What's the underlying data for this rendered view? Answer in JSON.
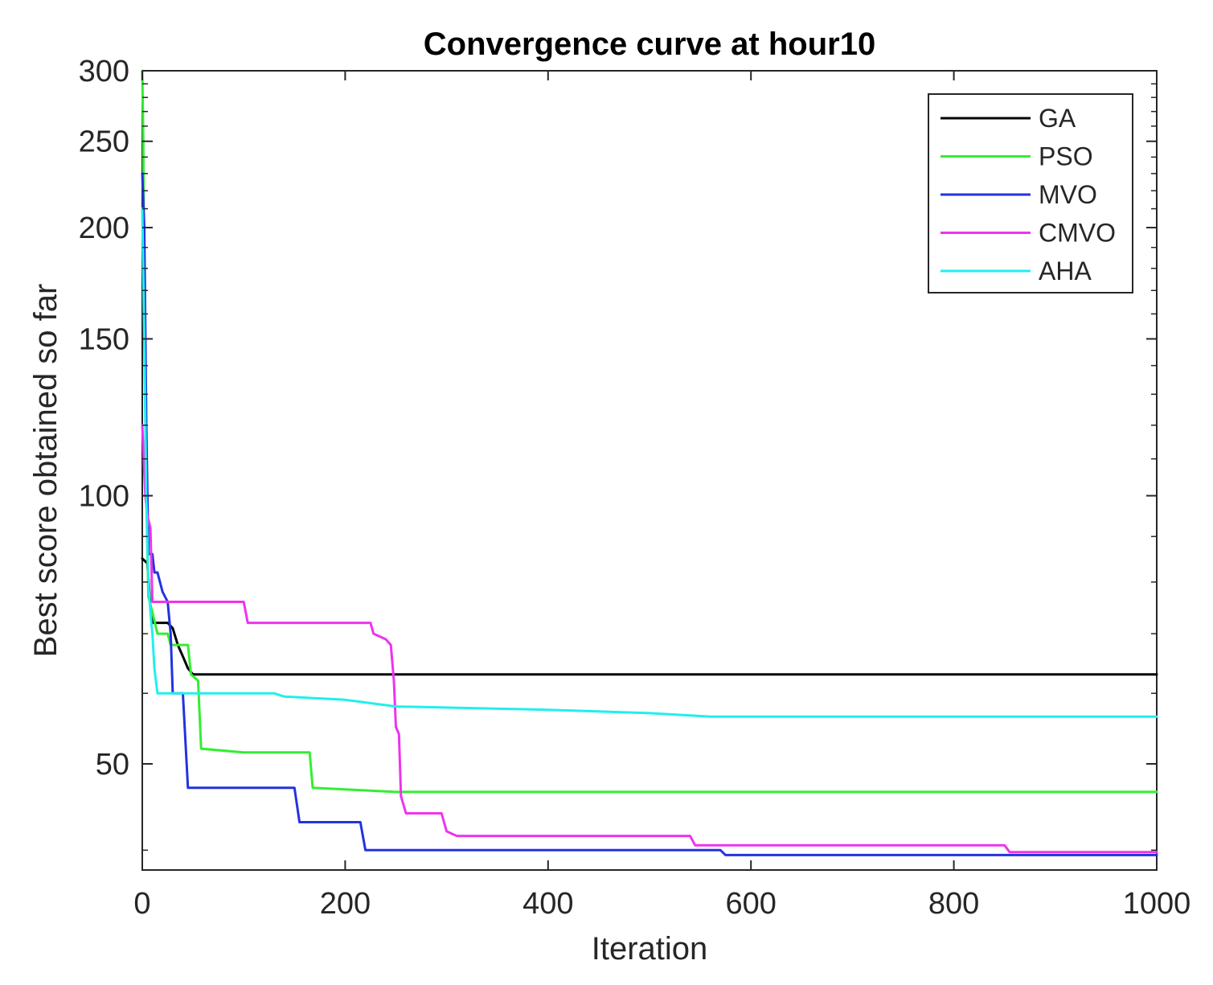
{
  "chart_data": {
    "type": "line",
    "title": "Convergence curve at hour10",
    "xlabel": "Iteration",
    "ylabel": "Best score obtained so far",
    "xlim": [
      0,
      1000
    ],
    "ylim": [
      38,
      300
    ],
    "y_scale": "log",
    "x_ticks": [
      0,
      200,
      400,
      600,
      800,
      1000
    ],
    "x_tick_labels": [
      "0",
      "200",
      "400",
      "600",
      "800",
      "1000"
    ],
    "y_ticks": [
      50,
      100,
      150,
      200,
      250,
      300
    ],
    "y_tick_labels": [
      "50",
      "100",
      "150",
      "200",
      "250",
      "300"
    ],
    "grid": false,
    "legend_position": "top-right",
    "series": [
      {
        "name": "GA",
        "color": "#000000",
        "points": [
          [
            0,
            85
          ],
          [
            5,
            84
          ],
          [
            8,
            75
          ],
          [
            10,
            72
          ],
          [
            15,
            72
          ],
          [
            25,
            72
          ],
          [
            30,
            71
          ],
          [
            35,
            68
          ],
          [
            40,
            66
          ],
          [
            45,
            64
          ],
          [
            50,
            63
          ],
          [
            100,
            63
          ],
          [
            200,
            63
          ],
          [
            400,
            63
          ],
          [
            600,
            63
          ],
          [
            800,
            63
          ],
          [
            1000,
            63
          ]
        ]
      },
      {
        "name": "PSO",
        "color": "#33ee33",
        "points": [
          [
            0,
            300
          ],
          [
            1,
            250
          ],
          [
            2,
            160
          ],
          [
            4,
            100
          ],
          [
            6,
            77
          ],
          [
            10,
            74
          ],
          [
            15,
            70
          ],
          [
            25,
            70
          ],
          [
            28,
            68
          ],
          [
            45,
            68
          ],
          [
            48,
            63
          ],
          [
            55,
            62
          ],
          [
            58,
            52
          ],
          [
            100,
            51.5
          ],
          [
            165,
            51.5
          ],
          [
            168,
            47
          ],
          [
            250,
            46.5
          ],
          [
            400,
            46.5
          ],
          [
            600,
            46.5
          ],
          [
            1000,
            46.5
          ]
        ]
      },
      {
        "name": "MVO",
        "color": "#2233dd",
        "points": [
          [
            0,
            230
          ],
          [
            2,
            200
          ],
          [
            4,
            120
          ],
          [
            6,
            86
          ],
          [
            10,
            86
          ],
          [
            12,
            82
          ],
          [
            15,
            82
          ],
          [
            20,
            78
          ],
          [
            25,
            76
          ],
          [
            28,
            70
          ],
          [
            30,
            60
          ],
          [
            40,
            60
          ],
          [
            45,
            47
          ],
          [
            150,
            47
          ],
          [
            155,
            43
          ],
          [
            215,
            43
          ],
          [
            220,
            40
          ],
          [
            400,
            40
          ],
          [
            570,
            40
          ],
          [
            575,
            39.5
          ],
          [
            1000,
            39.5
          ]
        ]
      },
      {
        "name": "CMVO",
        "color": "#ee33ee",
        "points": [
          [
            0,
            120
          ],
          [
            3,
            100
          ],
          [
            5,
            95
          ],
          [
            8,
            92
          ],
          [
            10,
            76
          ],
          [
            100,
            76
          ],
          [
            104,
            72
          ],
          [
            225,
            72
          ],
          [
            228,
            70
          ],
          [
            240,
            69
          ],
          [
            245,
            68
          ],
          [
            248,
            62
          ],
          [
            250,
            55
          ],
          [
            253,
            54
          ],
          [
            255,
            46
          ],
          [
            260,
            44
          ],
          [
            295,
            44
          ],
          [
            300,
            42
          ],
          [
            310,
            41.5
          ],
          [
            540,
            41.5
          ],
          [
            545,
            40.5
          ],
          [
            850,
            40.5
          ],
          [
            855,
            39.8
          ],
          [
            1000,
            39.8
          ]
        ]
      },
      {
        "name": "AHA",
        "color": "#22eeee",
        "points": [
          [
            0,
            210
          ],
          [
            2,
            150
          ],
          [
            4,
            100
          ],
          [
            6,
            80
          ],
          [
            8,
            74
          ],
          [
            10,
            70
          ],
          [
            12,
            64
          ],
          [
            15,
            60
          ],
          [
            130,
            60
          ],
          [
            140,
            59.5
          ],
          [
            200,
            59
          ],
          [
            250,
            58
          ],
          [
            400,
            57.5
          ],
          [
            500,
            57
          ],
          [
            560,
            56.5
          ],
          [
            700,
            56.5
          ],
          [
            850,
            56.5
          ],
          [
            1000,
            56.5
          ]
        ]
      }
    ]
  }
}
